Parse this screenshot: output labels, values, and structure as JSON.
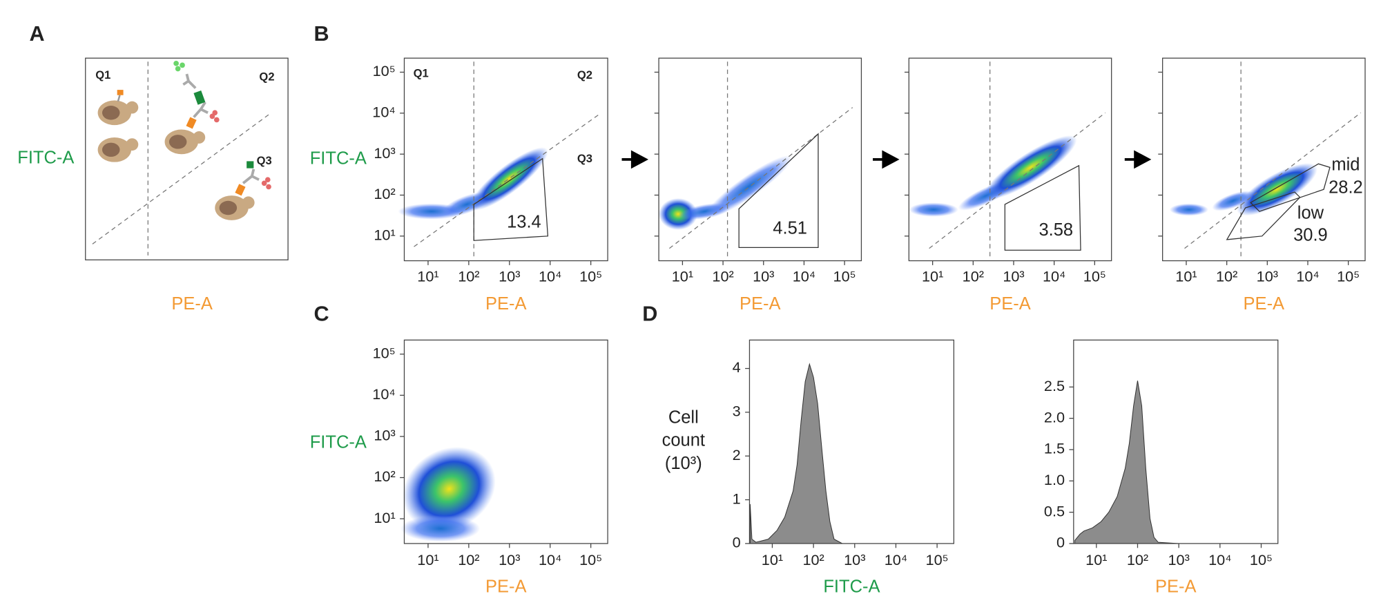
{
  "panel_labels": [
    "A",
    "B",
    "C",
    "D"
  ],
  "schematic": {
    "quadrant_labels": [
      "Q1",
      "Q2",
      "Q3"
    ],
    "y_label": "FITC-A",
    "x_label": "PE-A"
  },
  "chart_data": [
    {
      "type": "scatter",
      "y_label": "FITC-A",
      "x_label": "PE-A",
      "log_x": true,
      "log_y": true,
      "xlim": [
        2.6,
        260000
      ],
      "ylim": [
        2.5,
        220000
      ],
      "xticks": [
        {
          "value": 10,
          "label": "10¹"
        },
        {
          "value": 100,
          "label": "10²"
        },
        {
          "value": 1000,
          "label": "10³"
        },
        {
          "value": 10000,
          "label": "10⁴"
        },
        {
          "value": 100000,
          "label": "10⁵"
        }
      ],
      "yticks": [
        {
          "value": 10,
          "label": "10¹"
        },
        {
          "value": 100,
          "label": "10²"
        },
        {
          "value": 1000,
          "label": "10³"
        },
        {
          "value": 10000,
          "label": "10⁴"
        },
        {
          "value": 100000,
          "label": "10⁵"
        }
      ],
      "quadrant_labels": [
        "Q1",
        "Q2",
        "Q3"
      ],
      "gates": [
        {
          "label": "13.4"
        }
      ]
    },
    {
      "type": "scatter",
      "x_label": "PE-A",
      "log_x": true,
      "log_y": true,
      "xlim": [
        2.6,
        260000
      ],
      "ylim": [
        2.5,
        220000
      ],
      "xticks": [
        {
          "value": 10,
          "label": "10¹"
        },
        {
          "value": 100,
          "label": "10²"
        },
        {
          "value": 1000,
          "label": "10³"
        },
        {
          "value": 10000,
          "label": "10⁴"
        },
        {
          "value": 100000,
          "label": "10⁵"
        }
      ],
      "yticks": [
        10,
        100,
        1000,
        10000,
        100000
      ],
      "ytick_labels": false,
      "gates": [
        {
          "label": "4.51"
        }
      ]
    },
    {
      "type": "scatter",
      "x_label": "PE-A",
      "log_x": true,
      "log_y": true,
      "xlim": [
        2.6,
        260000
      ],
      "ylim": [
        2.5,
        220000
      ],
      "xticks": [
        {
          "value": 10,
          "label": "10¹"
        },
        {
          "value": 100,
          "label": "10²"
        },
        {
          "value": 1000,
          "label": "10³"
        },
        {
          "value": 10000,
          "label": "10⁴"
        },
        {
          "value": 100000,
          "label": "10⁵"
        }
      ],
      "yticks": [
        10,
        100,
        1000,
        10000,
        100000
      ],
      "ytick_labels": false,
      "gates": [
        {
          "label": "3.58"
        }
      ]
    },
    {
      "type": "scatter",
      "x_label": "PE-A",
      "log_x": true,
      "log_y": true,
      "xlim": [
        2.6,
        260000
      ],
      "ylim": [
        2.5,
        220000
      ],
      "xticks": [
        {
          "value": 10,
          "label": "10¹"
        },
        {
          "value": 100,
          "label": "10²"
        },
        {
          "value": 1000,
          "label": "10³"
        },
        {
          "value": 10000,
          "label": "10⁴"
        },
        {
          "value": 100000,
          "label": "10⁵"
        }
      ],
      "yticks": [
        10,
        100,
        1000,
        10000,
        100000
      ],
      "ytick_labels": false,
      "gates": [
        {
          "name": "mid",
          "label": "28.2"
        },
        {
          "name": "low",
          "label": "30.9"
        }
      ]
    },
    {
      "type": "scatter",
      "y_label": "FITC-A",
      "x_label": "PE-A",
      "log_x": true,
      "log_y": true,
      "xlim": [
        2.6,
        260000
      ],
      "ylim": [
        2.5,
        220000
      ],
      "xticks": [
        {
          "value": 10,
          "label": "10¹"
        },
        {
          "value": 100,
          "label": "10²"
        },
        {
          "value": 1000,
          "label": "10³"
        },
        {
          "value": 10000,
          "label": "10⁴"
        },
        {
          "value": 100000,
          "label": "10⁵"
        }
      ],
      "yticks": [
        {
          "value": 10,
          "label": "10¹"
        },
        {
          "value": 100,
          "label": "10²"
        },
        {
          "value": 1000,
          "label": "10³"
        },
        {
          "value": 10000,
          "label": "10⁴"
        },
        {
          "value": 100000,
          "label": "10⁵"
        }
      ]
    },
    {
      "type": "area",
      "y_label": [
        "Cell",
        "count",
        "(10³)"
      ],
      "x_label": "FITC-A",
      "log_x": true,
      "xlim": [
        2.8,
        255000
      ],
      "ylim": [
        0,
        4.65
      ],
      "color": "#8c8c8c",
      "xticks": [
        {
          "value": 10,
          "label": "10¹"
        },
        {
          "value": 100,
          "label": "10²"
        },
        {
          "value": 1000,
          "label": "10³"
        },
        {
          "value": 10000,
          "label": "10⁴"
        },
        {
          "value": 100000,
          "label": "10⁵"
        }
      ],
      "yticks": [
        0,
        1,
        2,
        3,
        4
      ],
      "x": [
        2.9,
        3.2,
        4,
        5,
        8,
        13,
        20,
        32,
        40,
        50,
        63,
        80,
        100,
        126,
        158,
        200,
        250,
        316,
        500,
        1000,
        200000
      ],
      "values": [
        0.9,
        0.1,
        0.03,
        0.05,
        0.1,
        0.3,
        0.6,
        1.2,
        1.8,
        2.8,
        3.7,
        4.1,
        3.8,
        3.2,
        2.2,
        1.2,
        0.5,
        0.1,
        0,
        0,
        0
      ]
    },
    {
      "type": "area",
      "x_label": "PE-A",
      "log_x": true,
      "xlim": [
        2.8,
        255000
      ],
      "ylim": [
        0,
        3.25
      ],
      "color": "#8c8c8c",
      "xticks": [
        {
          "value": 10,
          "label": "10¹"
        },
        {
          "value": 100,
          "label": "10²"
        },
        {
          "value": 1000,
          "label": "10³"
        },
        {
          "value": 10000,
          "label": "10⁴"
        },
        {
          "value": 100000,
          "label": "10⁵"
        }
      ],
      "yticks": [
        0,
        0.5,
        {
          "value": 1,
          "label": "1.0"
        },
        1.5,
        {
          "value": 2,
          "label": "2.0"
        },
        2.5
      ],
      "x": [
        3,
        4,
        5,
        8,
        13,
        20,
        32,
        50,
        63,
        80,
        100,
        126,
        158,
        200,
        250,
        316,
        1000,
        200000
      ],
      "values": [
        0.05,
        0.15,
        0.2,
        0.25,
        0.35,
        0.5,
        0.75,
        1.2,
        1.6,
        2.2,
        2.6,
        2.2,
        1.2,
        0.4,
        0.1,
        0.02,
        0,
        0
      ]
    }
  ]
}
